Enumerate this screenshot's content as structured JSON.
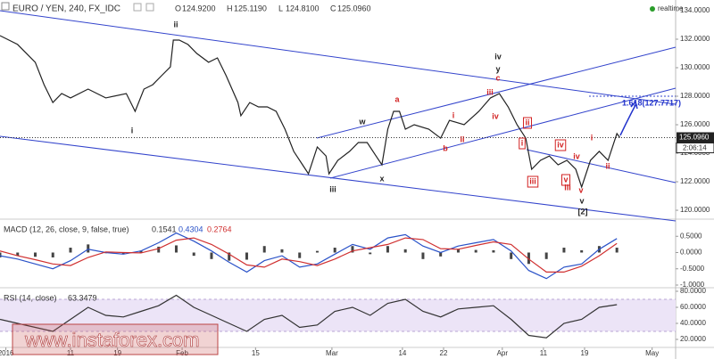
{
  "header": {
    "symbol": "EURO / YEN, 240, FX_IDC",
    "ohlc": [
      {
        "key": "O",
        "value": "124.9200"
      },
      {
        "key": "H",
        "value": "125.1190"
      },
      {
        "key": "L",
        "value": "124.8100"
      },
      {
        "key": "C",
        "value": "125.0960"
      }
    ],
    "status": "realtime"
  },
  "watermark": "www.instaforex.com",
  "chart_data": [
    {
      "type": "line",
      "title": "EURO / YEN, 240, FX_IDC",
      "x": [
        0,
        6,
        12,
        15,
        18,
        21,
        24,
        30,
        36,
        43,
        46,
        49,
        52,
        55,
        58,
        59,
        61,
        64,
        67,
        71,
        74,
        77,
        81,
        82,
        85,
        88,
        91,
        94,
        97,
        100,
        103,
        105,
        108,
        111,
        112,
        115,
        119,
        122,
        125,
        128,
        130,
        132,
        134,
        136,
        138,
        141,
        146,
        150,
        153,
        158,
        163,
        167,
        170,
        173,
        176,
        179,
        181,
        184,
        187,
        190,
        193,
        196,
        198,
        201,
        204,
        207,
        210,
        211
      ],
      "series": [
        {
          "color": "#222222",
          "values": [
            132.25,
            131.63,
            130.38,
            128.81,
            127.56,
            128.19,
            127.88,
            128.5,
            127.88,
            128.19,
            126.94,
            128.5,
            128.81,
            129.44,
            130.06,
            131.94,
            131.94,
            131.63,
            131.0,
            130.38,
            130.69,
            129.44,
            127.56,
            126.63,
            127.56,
            127.25,
            127.25,
            126.94,
            125.69,
            124.13,
            123.19,
            122.56,
            124.44,
            123.81,
            122.56,
            123.5,
            124.13,
            124.75,
            124.75,
            123.81,
            123.19,
            125.69,
            126.94,
            126.94,
            125.69,
            126.0,
            125.69,
            125.06,
            126.31,
            126.0,
            126.94,
            127.88,
            128.19,
            127.25,
            126.0,
            125.06,
            122.88,
            123.5,
            123.81,
            123.19,
            123.5,
            122.88,
            121.63,
            123.5,
            124.13,
            123.5,
            125.38,
            125.1
          ]
        }
      ],
      "xlim": [
        0,
        230
      ],
      "ylim": [
        119.44,
        134.75
      ],
      "yticks": [
        {
          "value": 120,
          "label": "120.0000"
        },
        {
          "value": 122,
          "label": "122.0000"
        },
        {
          "value": 124,
          "label": "124.0000"
        },
        {
          "value": 126,
          "label": "126.0000"
        },
        {
          "value": 128,
          "label": "128.0000"
        },
        {
          "value": 130,
          "label": "130.0000"
        },
        {
          "value": 132,
          "label": "132.0000"
        },
        {
          "value": 134,
          "label": "134.0000"
        }
      ],
      "last_price": {
        "value": 125.096,
        "label": "125.0960"
      },
      "countdown": "2:06:14",
      "annotations": [
        {
          "text": "i",
          "color": "#222222"
        },
        {
          "text": "ii",
          "color": "#222222"
        },
        {
          "text": "iii",
          "color": "#222222"
        },
        {
          "text": "w",
          "color": "#222222"
        },
        {
          "text": "x",
          "color": "#222222"
        },
        {
          "text": "iv",
          "color": "#222222"
        },
        {
          "text": "y",
          "color": "#222222"
        },
        {
          "text": "c",
          "color": "#d22222"
        },
        {
          "text": "a",
          "color": "#d22222"
        },
        {
          "text": "b",
          "color": "#d22222"
        },
        {
          "text": "i",
          "color": "#d22222"
        },
        {
          "text": "ii",
          "color": "#d22222"
        },
        {
          "text": "iii",
          "color": "#d22222"
        },
        {
          "text": "iv",
          "color": "#d22222"
        },
        {
          "text": "ii",
          "color": "#d22222",
          "boxed": true
        },
        {
          "text": "i",
          "color": "#d22222",
          "boxed": true
        },
        {
          "text": "iv",
          "color": "#d22222",
          "boxed": true
        },
        {
          "text": "iii",
          "color": "#d22222",
          "boxed": true
        },
        {
          "text": "v",
          "color": "#d22222",
          "boxed": true
        },
        {
          "text": "iii",
          "color": "#d22222"
        },
        {
          "text": "iv",
          "color": "#d22222"
        },
        {
          "text": "v",
          "color": "#d22222"
        },
        {
          "text": "v",
          "color": "#222222"
        },
        {
          "text": "[2]",
          "color": "#222222"
        },
        {
          "text": "i",
          "color": "#d22222"
        },
        {
          "text": "ii",
          "color": "#d22222"
        },
        {
          "text": "1.618(127.7717)",
          "color": "#2233cc"
        }
      ]
    },
    {
      "type": "macd",
      "title": "MACD (12, 26, close, 9, false, true)",
      "readouts": [
        {
          "text": "0.1541",
          "color": "#333333"
        },
        {
          "text": "0.4304",
          "color": "#2a52c8"
        },
        {
          "text": "0.2764",
          "color": "#d03030"
        }
      ],
      "x": [
        0,
        6,
        12,
        18,
        24,
        30,
        36,
        42,
        48,
        54,
        60,
        66,
        72,
        78,
        84,
        90,
        96,
        102,
        108,
        114,
        120,
        126,
        132,
        138,
        144,
        150,
        156,
        162,
        168,
        174,
        180,
        186,
        192,
        198,
        204,
        210
      ],
      "series": [
        {
          "kind": "histogram",
          "color": "#444444",
          "values": [
            -0.15,
            -0.1,
            -0.13,
            -0.15,
            0.15,
            0.25,
            -0.02,
            -0.05,
            0.06,
            0.18,
            0.22,
            -0.1,
            -0.2,
            -0.25,
            -0.22,
            0.2,
            0.1,
            -0.17,
            0.05,
            0.15,
            0.2,
            -0.05,
            0.2,
            0.1,
            -0.2,
            -0.12,
            0.1,
            0.08,
            0.07,
            -0.2,
            -0.35,
            -0.2,
            0.15,
            0.07,
            0.2,
            0.15
          ]
        },
        {
          "kind": "line",
          "color": "#2a52c8",
          "values": [
            -0.1,
            -0.2,
            -0.35,
            -0.5,
            -0.25,
            0.1,
            0.0,
            -0.05,
            0.05,
            0.3,
            0.6,
            0.35,
            0.05,
            -0.3,
            -0.6,
            -0.25,
            -0.1,
            -0.45,
            -0.35,
            -0.05,
            0.25,
            0.1,
            0.45,
            0.55,
            0.2,
            0.0,
            0.2,
            0.3,
            0.4,
            0.05,
            -0.55,
            -0.8,
            -0.45,
            -0.35,
            0.1,
            0.43
          ]
        },
        {
          "kind": "line",
          "color": "#d03030",
          "values": [
            0.05,
            -0.1,
            -0.22,
            -0.35,
            -0.4,
            -0.15,
            0.02,
            0.0,
            -0.01,
            0.12,
            0.38,
            0.45,
            0.25,
            -0.05,
            -0.38,
            -0.45,
            -0.2,
            -0.28,
            -0.4,
            -0.2,
            0.05,
            0.15,
            0.25,
            0.45,
            0.4,
            0.12,
            0.1,
            0.22,
            0.33,
            0.25,
            -0.2,
            -0.6,
            -0.6,
            -0.42,
            -0.1,
            0.28
          ]
        }
      ],
      "xlim": [
        0,
        230
      ],
      "ylim": [
        -1.055,
        1.0
      ],
      "yticks": [
        {
          "value": 0.5,
          "label": "0.5000"
        },
        {
          "value": 0,
          "label": "0.0000"
        },
        {
          "value": -0.5,
          "label": "-0.5000"
        },
        {
          "value": -1,
          "label": "-1.0000"
        }
      ]
    },
    {
      "type": "line",
      "title": "RSI (14, close)",
      "readouts": [
        {
          "text": "63.3479",
          "color": "#333333"
        }
      ],
      "band": [
        30,
        70
      ],
      "x": [
        0,
        6,
        12,
        18,
        24,
        30,
        36,
        42,
        48,
        54,
        60,
        66,
        72,
        78,
        84,
        90,
        96,
        102,
        108,
        114,
        120,
        126,
        132,
        138,
        144,
        150,
        156,
        162,
        168,
        174,
        180,
        186,
        192,
        198,
        204,
        210
      ],
      "series": [
        {
          "color": "#333333",
          "values": [
            45,
            40,
            35,
            30,
            45,
            60,
            50,
            48,
            55,
            62,
            75,
            60,
            50,
            40,
            30,
            45,
            50,
            35,
            38,
            55,
            60,
            50,
            65,
            70,
            55,
            48,
            58,
            60,
            62,
            45,
            25,
            22,
            40,
            45,
            60,
            63.35
          ]
        }
      ],
      "xlim": [
        0,
        230
      ],
      "ylim": [
        10,
        83.3
      ],
      "yticks": [
        {
          "value": 80,
          "label": "80.0000"
        },
        {
          "value": 60,
          "label": "60.0000"
        },
        {
          "value": 40,
          "label": "40.0000"
        },
        {
          "value": 20,
          "label": "20.0000"
        }
      ],
      "xticks": [
        {
          "value": 2,
          "label": "2016"
        },
        {
          "value": 24,
          "label": "11"
        },
        {
          "value": 40,
          "label": "19"
        },
        {
          "value": 62,
          "label": "Feb"
        },
        {
          "value": 87,
          "label": "15"
        },
        {
          "value": 113,
          "label": "Mar"
        },
        {
          "value": 137,
          "label": "14"
        },
        {
          "value": 151,
          "label": "22"
        },
        {
          "value": 171,
          "label": "Apr"
        },
        {
          "value": 185,
          "label": "11"
        },
        {
          "value": 199,
          "label": "19"
        },
        {
          "value": 222,
          "label": "May"
        }
      ]
    }
  ]
}
